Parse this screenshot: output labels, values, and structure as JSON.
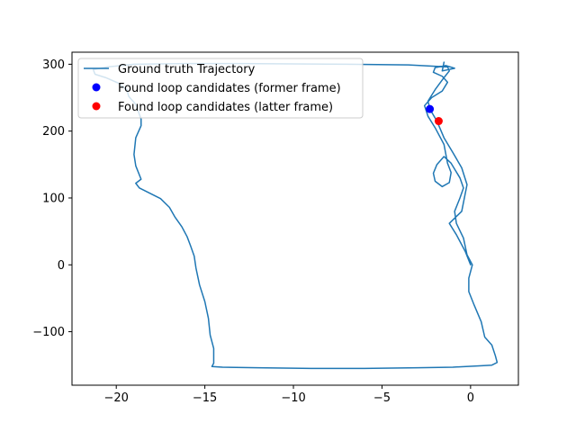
{
  "chart_data": {
    "type": "line",
    "title": "",
    "xlabel": "",
    "ylabel": "",
    "xlim": [
      -22.5,
      2.7
    ],
    "ylim": [
      -180,
      318
    ],
    "grid": false,
    "legend_position": "top-left",
    "x_ticks": [
      -20,
      -15,
      -10,
      -5,
      0
    ],
    "x_tick_labels": [
      "−20",
      "−15",
      "−10",
      "−5",
      "0"
    ],
    "y_ticks": [
      -100,
      0,
      100,
      200,
      300
    ],
    "y_tick_labels": [
      "−100",
      "0",
      "100",
      "200",
      "300"
    ],
    "series": [
      {
        "name": "Ground truth Trajectory",
        "kind": "line",
        "color": "#1f77b4",
        "points": [
          [
            0.0,
            0
          ],
          [
            -0.3,
            20
          ],
          [
            -0.8,
            45
          ],
          [
            -1.2,
            62
          ],
          [
            -0.5,
            80
          ],
          [
            -0.2,
            120
          ],
          [
            -0.5,
            145
          ],
          [
            -1.0,
            168
          ],
          [
            -1.5,
            190
          ],
          [
            -1.9,
            215
          ],
          [
            -2.3,
            233
          ],
          [
            -2.4,
            245
          ],
          [
            -2.0,
            262
          ],
          [
            -1.5,
            280
          ],
          [
            -1.2,
            290
          ],
          [
            -1.3,
            296
          ],
          [
            -3.5,
            299
          ],
          [
            -7.0,
            300
          ],
          [
            -10.0,
            300.5
          ],
          [
            -13.0,
            301
          ],
          [
            -16.0,
            301
          ],
          [
            -19.0,
            300
          ],
          [
            -20.5,
            296
          ],
          [
            -21.3,
            292
          ],
          [
            -21.2,
            285
          ],
          [
            -20.6,
            280
          ],
          [
            -19.9,
            272
          ],
          [
            -19.4,
            262
          ],
          [
            -19.3,
            252
          ],
          [
            -18.9,
            240
          ],
          [
            -18.6,
            218
          ],
          [
            -18.6,
            208
          ],
          [
            -18.9,
            190
          ],
          [
            -19.0,
            165
          ],
          [
            -18.9,
            148
          ],
          [
            -18.6,
            128
          ],
          [
            -18.9,
            122
          ],
          [
            -18.7,
            115
          ],
          [
            -17.5,
            99
          ],
          [
            -17.0,
            86
          ],
          [
            -16.7,
            72
          ],
          [
            -16.3,
            57
          ],
          [
            -16.0,
            42
          ],
          [
            -15.8,
            28
          ],
          [
            -15.6,
            13
          ],
          [
            -15.5,
            -5
          ],
          [
            -15.3,
            -30
          ],
          [
            -15.0,
            -55
          ],
          [
            -14.8,
            -80
          ],
          [
            -14.7,
            -105
          ],
          [
            -14.5,
            -125
          ],
          [
            -14.5,
            -147
          ],
          [
            -14.6,
            -152
          ],
          [
            -14.0,
            -153
          ],
          [
            -12.0,
            -154
          ],
          [
            -9.0,
            -155
          ],
          [
            -6.0,
            -155
          ],
          [
            -3.0,
            -154
          ],
          [
            -1.0,
            -153
          ],
          [
            0.5,
            -151
          ],
          [
            1.2,
            -150
          ],
          [
            1.5,
            -146
          ],
          [
            1.4,
            -136
          ],
          [
            1.2,
            -120
          ],
          [
            0.8,
            -108
          ],
          [
            0.6,
            -85
          ],
          [
            0.2,
            -60
          ],
          [
            -0.1,
            -40
          ],
          [
            -0.1,
            -20
          ],
          [
            0.1,
            0
          ],
          [
            -0.2,
            15
          ],
          [
            -0.4,
            40
          ],
          [
            -0.8,
            62
          ],
          [
            -0.9,
            80
          ],
          [
            -0.6,
            100
          ],
          [
            -0.4,
            115
          ],
          [
            -0.6,
            130
          ],
          [
            -1.1,
            152
          ],
          [
            -1.5,
            162
          ],
          [
            -1.9,
            150
          ],
          [
            -2.1,
            137
          ],
          [
            -2.0,
            125
          ],
          [
            -1.6,
            117
          ],
          [
            -1.2,
            123
          ],
          [
            -1.1,
            138
          ],
          [
            -1.3,
            152
          ],
          [
            -1.5,
            180
          ],
          [
            -2.0,
            205
          ],
          [
            -2.4,
            222
          ],
          [
            -2.6,
            238
          ],
          [
            -2.2,
            250
          ],
          [
            -1.6,
            260
          ],
          [
            -1.3,
            273
          ],
          [
            -1.6,
            282
          ],
          [
            -2.1,
            288
          ],
          [
            -2.0,
            295
          ],
          [
            -1.4,
            298
          ],
          [
            -0.9,
            294
          ],
          [
            -1.6,
            290
          ],
          [
            -1.5,
            303
          ]
        ]
      },
      {
        "name": "Found loop candidates (former frame)",
        "kind": "marker",
        "color": "#0000ff",
        "points": [
          [
            -2.3,
            233
          ]
        ]
      },
      {
        "name": "Found loop candidates (latter frame)",
        "kind": "marker",
        "color": "#ff0000",
        "points": [
          [
            -1.8,
            215
          ]
        ]
      }
    ]
  }
}
